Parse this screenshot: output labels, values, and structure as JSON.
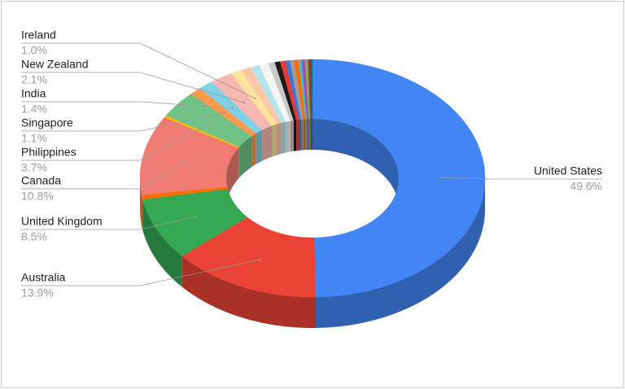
{
  "chart_data": {
    "type": "donut3d",
    "categories": [
      "United States",
      "Australia",
      "United Kingdom",
      null,
      "Canada",
      null,
      "Philippines",
      "Singapore",
      "India",
      "New Zealand",
      "Ireland",
      null,
      null,
      null,
      null,
      null,
      null,
      null,
      null,
      null,
      null,
      null,
      null,
      null,
      null
    ],
    "values": [
      49.6,
      13.9,
      8.5,
      0.6,
      10.8,
      0.3,
      3.7,
      1.1,
      1.4,
      2.1,
      1.0,
      1.0,
      0.8,
      0.9,
      0.6,
      0.5,
      0.5,
      0.4,
      0.4,
      0.4,
      0.3,
      0.3,
      0.3,
      0.2,
      0.2
    ],
    "value_labels": [
      "49.6%",
      "13.9%",
      "8.5%",
      null,
      "10.8%",
      null,
      "3.7%",
      "1.1%",
      "1.4%",
      "2.1%",
      "1.0%",
      null,
      null,
      null,
      null,
      null,
      null,
      null,
      null,
      null,
      null,
      null,
      null,
      null,
      null
    ],
    "colors": [
      "#4285f4",
      "#ea4335",
      "#34a853",
      "#ff6d01",
      "#f07b72",
      "#fbbc04",
      "#71c287",
      "#ff994d",
      "#7ed1e6",
      "#f7b7b2",
      "#fde49c",
      "#fcc9a8",
      "#b3e5ec",
      "#f4f4f4",
      "#c9c9c9",
      "#1a1a1a",
      "#e53935",
      "#3c78d8",
      "#9e9e9e",
      "#ff6d01",
      "#46bdc6",
      "#ab47bc",
      "#7cb342",
      "#c2185b",
      "#0b8043"
    ]
  }
}
